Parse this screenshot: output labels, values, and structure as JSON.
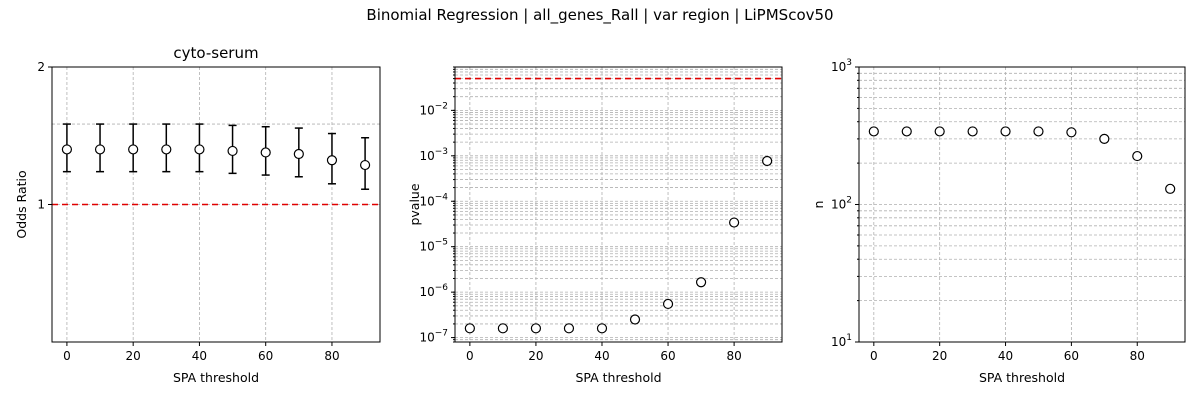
{
  "figure": {
    "suptitle": "Binomial Regression | all_genes_Rall | var region | LiPMScov50"
  },
  "chart_data": [
    {
      "type": "scatter",
      "title": "cyto-serum",
      "xlabel": "SPA threshold",
      "ylabel": "Odds Ratio",
      "xlim": [
        -4.5,
        94.5
      ],
      "xticks": [
        0,
        20,
        40,
        60,
        80
      ],
      "ylim": [
        0.5,
        2
      ],
      "yscale": "log",
      "yticks": [
        {
          "value": 1,
          "label": "1"
        },
        {
          "value": 2,
          "label": "2"
        }
      ],
      "minor_y_grid": [
        1.5
      ],
      "grid": true,
      "reference_line": {
        "y": 1,
        "color": "#e00000"
      },
      "x": [
        0,
        10,
        20,
        30,
        40,
        50,
        60,
        70,
        80,
        90
      ],
      "y": [
        1.32,
        1.32,
        1.32,
        1.32,
        1.32,
        1.31,
        1.3,
        1.29,
        1.25,
        1.22
      ],
      "yerr_low": [
        1.18,
        1.18,
        1.18,
        1.18,
        1.18,
        1.17,
        1.16,
        1.15,
        1.11,
        1.08
      ],
      "yerr_high": [
        1.5,
        1.5,
        1.5,
        1.5,
        1.5,
        1.49,
        1.48,
        1.47,
        1.43,
        1.4
      ],
      "marker_color": "#000000"
    },
    {
      "type": "scatter",
      "title": "",
      "xlabel": "SPA threshold",
      "ylabel": "pvalue",
      "xlim": [
        -4.5,
        94.5
      ],
      "xticks": [
        0,
        20,
        40,
        60,
        80
      ],
      "ylim": [
        8e-08,
        0.09
      ],
      "yscale": "log",
      "yticks": [
        {
          "value": 1e-07,
          "base": "10",
          "exp": "−7"
        },
        {
          "value": 1e-06,
          "base": "10",
          "exp": "−6"
        },
        {
          "value": 1e-05,
          "base": "10",
          "exp": "−5"
        },
        {
          "value": 0.0001,
          "base": "10",
          "exp": "−4"
        },
        {
          "value": 0.001,
          "base": "10",
          "exp": "−3"
        },
        {
          "value": 0.01,
          "base": "10",
          "exp": "−2"
        }
      ],
      "minor_log_grid": true,
      "grid": true,
      "reference_line": {
        "y": 0.05,
        "color": "#e00000"
      },
      "x": [
        0,
        10,
        20,
        30,
        40,
        50,
        60,
        70,
        80,
        90
      ],
      "y": [
        1.6e-07,
        1.6e-07,
        1.6e-07,
        1.6e-07,
        1.6e-07,
        2.5e-07,
        5.5e-07,
        1.65e-06,
        3.4e-05,
        0.00077
      ]
    },
    {
      "type": "scatter",
      "title": "",
      "xlabel": "SPA threshold",
      "ylabel": "n",
      "xlim": [
        -4.5,
        94.5
      ],
      "xticks": [
        0,
        20,
        40,
        60,
        80
      ],
      "ylim": [
        10,
        1000
      ],
      "yscale": "log",
      "yticks": [
        {
          "value": 10,
          "base": "10",
          "exp": "1"
        },
        {
          "value": 100,
          "base": "10",
          "exp": "2"
        },
        {
          "value": 1000,
          "base": "10",
          "exp": "3"
        }
      ],
      "minor_log_grid": true,
      "grid": true,
      "x": [
        0,
        10,
        20,
        30,
        40,
        50,
        60,
        70,
        80,
        90
      ],
      "y": [
        340,
        340,
        340,
        340,
        340,
        340,
        335,
        300,
        225,
        130
      ]
    }
  ]
}
